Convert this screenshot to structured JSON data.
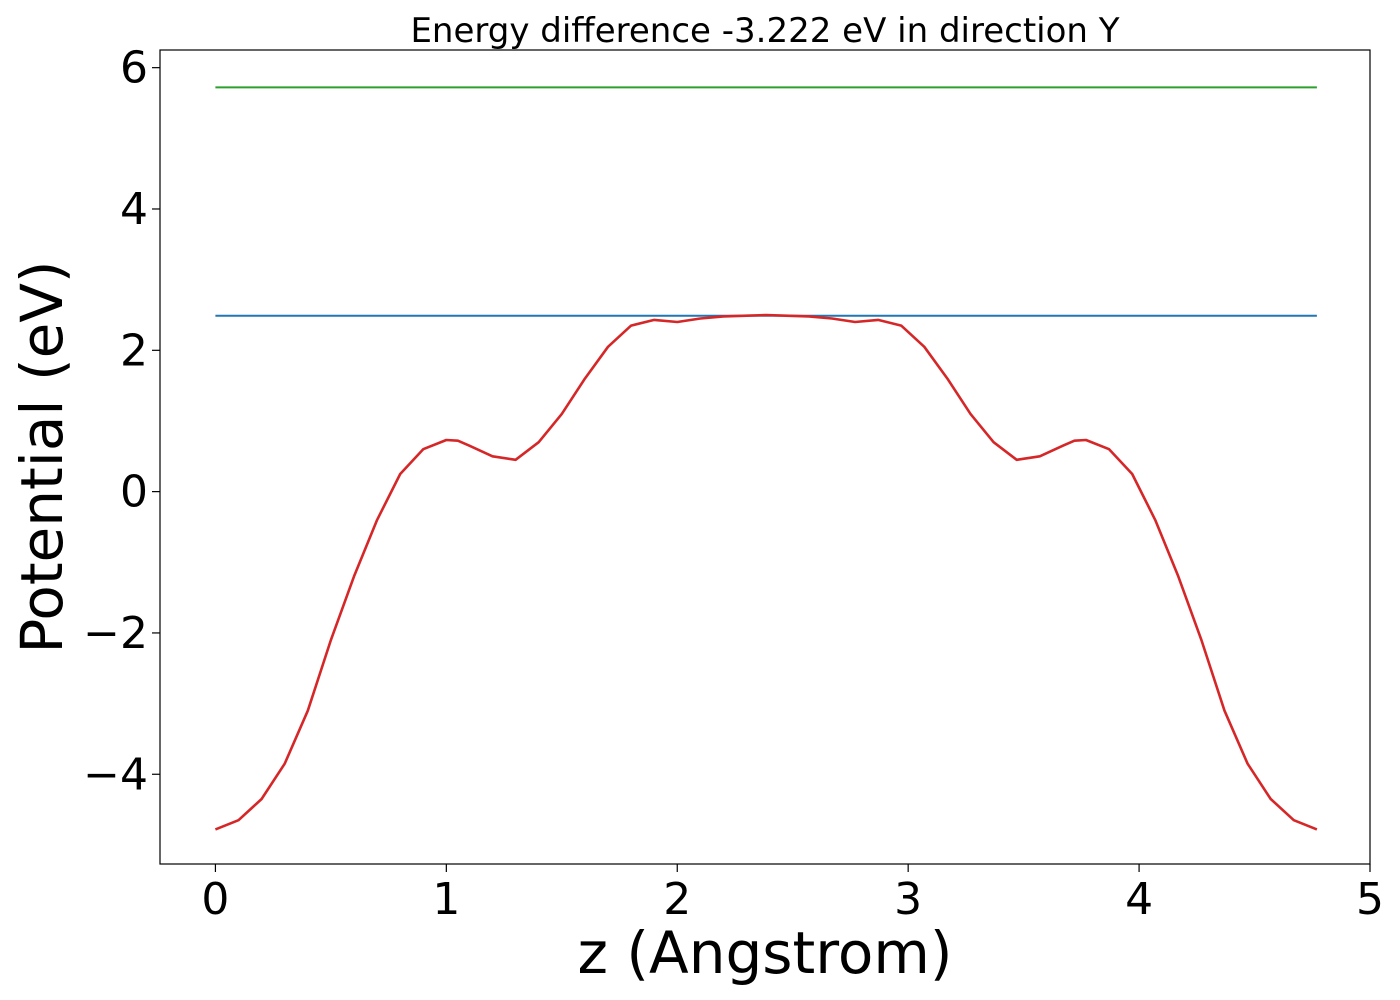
{
  "chart_data": {
    "type": "line",
    "title": "Energy difference -3.222 eV in direction Y",
    "xlabel": "z (Angstrom)",
    "ylabel": "Potential (eV)",
    "xlim": [
      -0.24,
      5.0
    ],
    "ylim": [
      -5.27,
      6.25
    ],
    "xticks": [
      0,
      1,
      2,
      3,
      4,
      5
    ],
    "yticks": [
      -4,
      -2,
      0,
      2,
      4,
      6
    ],
    "grid": false,
    "series": [
      {
        "color": "#2ca02c",
        "x": [
          0,
          4.77
        ],
        "y": [
          5.72,
          5.72
        ]
      },
      {
        "color": "#1f77b4",
        "x": [
          0,
          4.77
        ],
        "y": [
          2.49,
          2.49
        ]
      },
      {
        "color": "#d62728",
        "x": [
          0,
          0.1,
          0.2,
          0.3,
          0.4,
          0.5,
          0.6,
          0.7,
          0.8,
          0.9,
          1.0,
          1.05,
          1.1,
          1.2,
          1.3,
          1.4,
          1.5,
          1.6,
          1.7,
          1.8,
          1.9,
          2.0,
          2.1,
          2.2,
          2.3,
          2.385,
          2.47,
          2.57,
          2.67,
          2.77,
          2.87,
          2.97,
          3.07,
          3.17,
          3.27,
          3.37,
          3.47,
          3.57,
          3.67,
          3.72,
          3.77,
          3.87,
          3.97,
          4.07,
          4.17,
          4.27,
          4.37,
          4.47,
          4.57,
          4.67,
          4.77
        ],
        "y": [
          -4.78,
          -4.65,
          -4.35,
          -3.85,
          -3.1,
          -2.1,
          -1.2,
          -0.4,
          0.25,
          0.6,
          0.73,
          0.72,
          0.65,
          0.5,
          0.45,
          0.7,
          1.1,
          1.6,
          2.05,
          2.35,
          2.43,
          2.4,
          2.45,
          2.48,
          2.49,
          2.5,
          2.49,
          2.48,
          2.45,
          2.4,
          2.43,
          2.35,
          2.05,
          1.6,
          1.1,
          0.7,
          0.45,
          0.5,
          0.65,
          0.72,
          0.73,
          0.6,
          0.25,
          -0.4,
          -1.2,
          -2.1,
          -3.1,
          -3.85,
          -4.35,
          -4.65,
          -4.78
        ]
      }
    ]
  }
}
